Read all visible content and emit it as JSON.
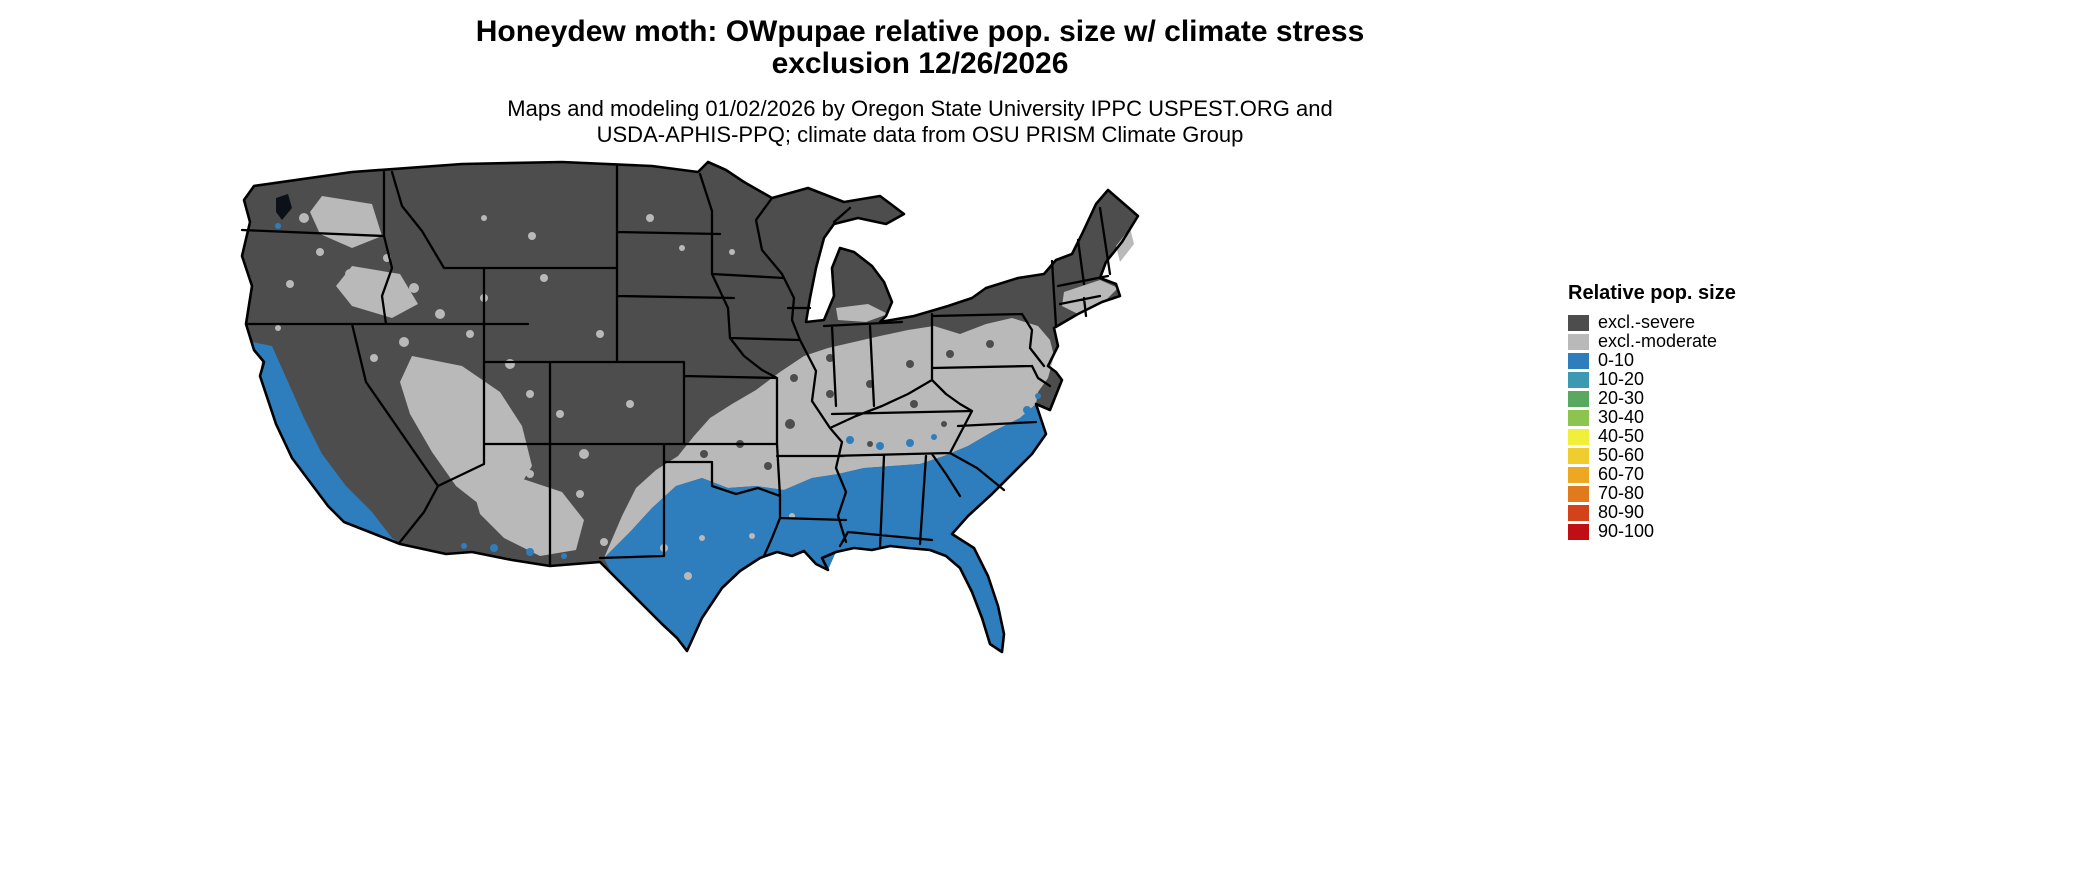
{
  "title": {
    "line1": "Honeydew moth: OWpupae relative pop. size w/ climate stress",
    "line2": "exclusion 12/26/2026"
  },
  "subtitle": {
    "line1": "Maps and modeling 01/02/2026 by Oregon State University IPPC USPEST.ORG and",
    "line2": "USDA-APHIS-PPQ; climate data from OSU PRISM Climate Group"
  },
  "legend": {
    "title": "Relative pop. size",
    "items": [
      {
        "label": "excl.-severe",
        "color": "#4d4d4d"
      },
      {
        "label": "excl.-moderate",
        "color": "#b9b9b9"
      },
      {
        "label": "0-10",
        "color": "#2e7ebd"
      },
      {
        "label": "10-20",
        "color": "#3d98b2"
      },
      {
        "label": "20-30",
        "color": "#58a85f"
      },
      {
        "label": "30-40",
        "color": "#8cc44f"
      },
      {
        "label": "40-50",
        "color": "#f2ef3a"
      },
      {
        "label": "50-60",
        "color": "#f0cd2e"
      },
      {
        "label": "60-70",
        "color": "#eda722"
      },
      {
        "label": "70-80",
        "color": "#e07a1d"
      },
      {
        "label": "80-90",
        "color": "#d4421c"
      },
      {
        "label": "90-100",
        "color": "#bf0f14"
      }
    ]
  },
  "map": {
    "background": "#ffffff",
    "outline_color": "#000000",
    "region_colors": {
      "severe": "#4d4d4d",
      "moderate": "#b9b9b9",
      "low": "#2e7ebd"
    }
  }
}
